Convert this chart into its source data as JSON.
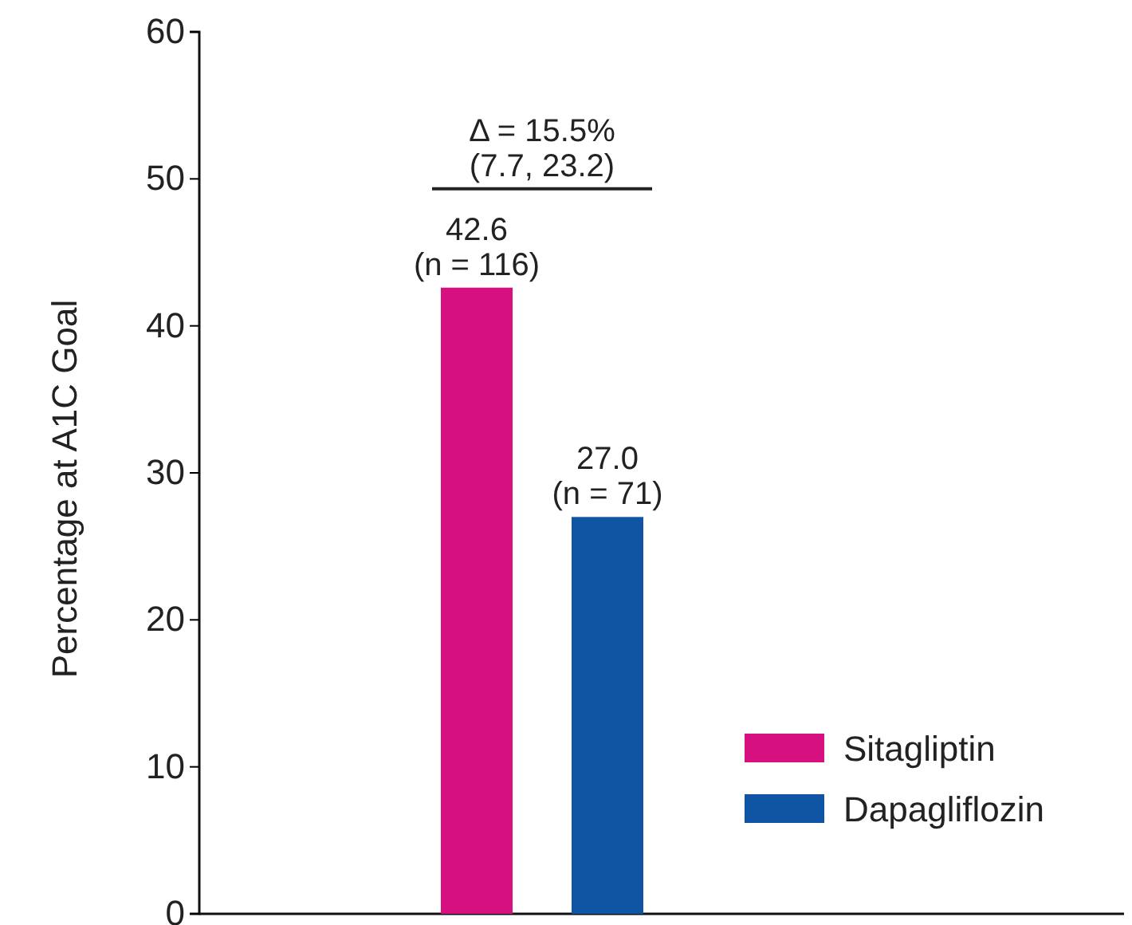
{
  "chart_data": {
    "type": "bar",
    "ylabel": "Percentage at A1C Goal",
    "categories": [
      null
    ],
    "series": [
      {
        "name": "Sitagliptin",
        "color": "#d6117f",
        "values": [
          42.6
        ],
        "value_labels": [
          "42.6\n(n = 116)"
        ]
      },
      {
        "name": "Dapagliflozin",
        "color": "#0f55a3",
        "values": [
          27.0
        ],
        "value_labels": [
          "27.0\n(n = 71)"
        ]
      }
    ],
    "ylim": [
      0,
      60
    ],
    "yticks": [
      0,
      10,
      20,
      30,
      40,
      50,
      60
    ],
    "grid": false,
    "legend": "bottom right",
    "annotations": [
      "Δ = 15.5%\n(7.7, 23.2)"
    ]
  }
}
